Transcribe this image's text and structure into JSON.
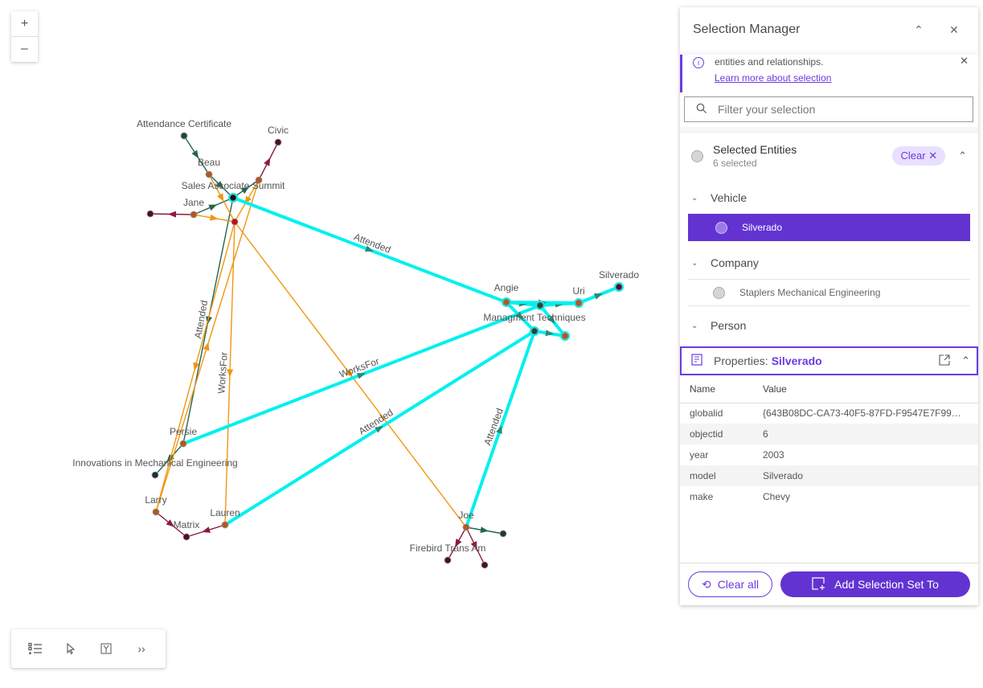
{
  "graph": {
    "nodes": [
      {
        "id": "ac",
        "label": "Attendance Certificate",
        "color": "#1f4a3a"
      },
      {
        "id": "civic",
        "label": "Civic",
        "color": "#4a0f2e"
      },
      {
        "id": "beau",
        "label": "Beau",
        "color": "#b0581e"
      },
      {
        "id": "summit",
        "label": "",
        "color": "#b0581e"
      },
      {
        "id": "sas",
        "label": "Sales Associate Summit",
        "color": "#111"
      },
      {
        "id": "jane",
        "label": "Jane",
        "color": "#b0581e"
      },
      {
        "id": "jl",
        "label": "",
        "color": "#4a0f2e"
      },
      {
        "id": "red",
        "label": "",
        "color": "#b81414"
      },
      {
        "id": "angie",
        "label": "Angie",
        "color": "#b0581e"
      },
      {
        "id": "mid",
        "label": "",
        "color": "#1f4a3a"
      },
      {
        "id": "uri",
        "label": "Uri",
        "color": "#b0581e"
      },
      {
        "id": "silverado",
        "label": "Silverado",
        "color": "#4a0f2e"
      },
      {
        "id": "mt",
        "label": "Managment Techniques",
        "color": "#1f4a3a"
      },
      {
        "id": "mt2",
        "label": "",
        "color": "#b0581e"
      },
      {
        "id": "persie",
        "label": "Persie",
        "color": "#b0581e"
      },
      {
        "id": "imech",
        "label": "Innovations in Mechanical Engineering",
        "color": "#1f2f3a"
      },
      {
        "id": "larry",
        "label": "Larry",
        "color": "#b0581e"
      },
      {
        "id": "matrix",
        "label": "Matrix",
        "color": "#4a0f2e"
      },
      {
        "id": "lauren",
        "label": "Lauren",
        "color": "#b0581e"
      },
      {
        "id": "joe",
        "label": "Joe",
        "color": "#b0581e"
      },
      {
        "id": "jt",
        "label": "",
        "color": "#1f3a34"
      },
      {
        "id": "firebird",
        "label": "Firebird Trans Am",
        "color": "#4a0f2e"
      },
      {
        "id": "jr",
        "label": "",
        "color": "#4a0f2e"
      }
    ],
    "edge_labels": {
      "attended": "Attended",
      "worksfor": "WorksFor"
    },
    "colors": {
      "selected": "#00f0f0",
      "attended": "#236650",
      "worksfor": "#f0960f",
      "owns": "#8a1c3c"
    }
  },
  "zoom": {
    "in": "+",
    "out": "–"
  },
  "panel": {
    "title": "Selection Manager",
    "notice_text": "entities and relationships.",
    "notice_link": "Learn more about selection",
    "filter_placeholder": "Filter your selection",
    "selected_title": "Selected Entities",
    "selected_count": "6 selected",
    "clear_label": "Clear",
    "groups": [
      {
        "label": "Vehicle",
        "items": [
          "Silverado"
        ]
      },
      {
        "label": "Company",
        "items": [
          "Staplers Mechanical Engineering"
        ]
      },
      {
        "label": "Person",
        "items": []
      }
    ],
    "properties_label": "Properties:",
    "properties_entity": "Silverado",
    "columns": [
      "Name",
      "Value"
    ],
    "rows": [
      [
        "globalid",
        "{643B08DC-CA73-40F5-87FD-F9547E7F99…"
      ],
      [
        "objectid",
        "6"
      ],
      [
        "year",
        "2003"
      ],
      [
        "model",
        "Silverado"
      ],
      [
        "make",
        "Chevy"
      ]
    ],
    "clear_all": "Clear all",
    "add_set": "Add Selection Set To"
  },
  "accent": "#6233d1"
}
